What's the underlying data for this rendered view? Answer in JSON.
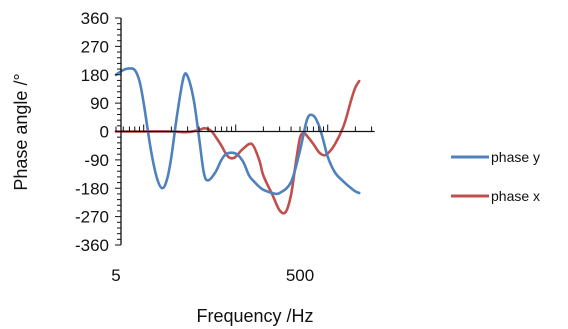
{
  "chart_data": {
    "type": "line",
    "xlabel": "Frequency /Hz",
    "ylabel": "Phase angle /°",
    "x_scale": "log",
    "xlim": [
      5,
      3000
    ],
    "ylim": [
      -360,
      360
    ],
    "y_major_ticks": [
      360,
      270,
      180,
      90,
      0,
      -90,
      -180,
      -270,
      -360
    ],
    "x_tick_labels": [
      "5",
      "500"
    ],
    "legend_position": "right",
    "series": [
      {
        "name": "phase y",
        "color": "#4f81bd",
        "x": [
          5,
          6,
          7,
          8,
          9,
          10,
          12,
          14,
          16,
          18,
          20,
          23,
          27,
          30,
          35,
          40,
          45,
          50,
          60,
          70,
          80,
          100,
          120,
          140,
          160,
          180,
          200,
          250,
          300,
          400,
          500,
          600,
          700,
          800,
          900,
          1000,
          1200,
          1500,
          1800,
          2000,
          2200
        ],
        "y": [
          180,
          195,
          200,
          195,
          160,
          90,
          -60,
          -150,
          -180,
          -150,
          -80,
          50,
          170,
          175,
          100,
          -20,
          -130,
          -155,
          -130,
          -90,
          -70,
          -70,
          -95,
          -140,
          -160,
          -175,
          -185,
          -195,
          -195,
          -160,
          -60,
          40,
          50,
          20,
          -30,
          -80,
          -130,
          -160,
          -180,
          -190,
          -195
        ]
      },
      {
        "name": "phase x",
        "color": "#c0504d",
        "x": [
          5,
          10,
          20,
          30,
          40,
          45,
          50,
          55,
          60,
          70,
          80,
          90,
          100,
          120,
          150,
          180,
          200,
          250,
          300,
          350,
          400,
          450,
          500,
          550,
          600,
          700,
          800,
          900,
          1000,
          1200,
          1500,
          1800,
          2000,
          2200
        ],
        "y": [
          0,
          0,
          0,
          -2,
          5,
          10,
          8,
          0,
          -15,
          -45,
          -75,
          -85,
          -80,
          -55,
          -40,
          -90,
          -140,
          -200,
          -250,
          -255,
          -200,
          -100,
          -20,
          -5,
          -15,
          -40,
          -65,
          -75,
          -70,
          -40,
          20,
          100,
          140,
          160
        ]
      }
    ]
  }
}
